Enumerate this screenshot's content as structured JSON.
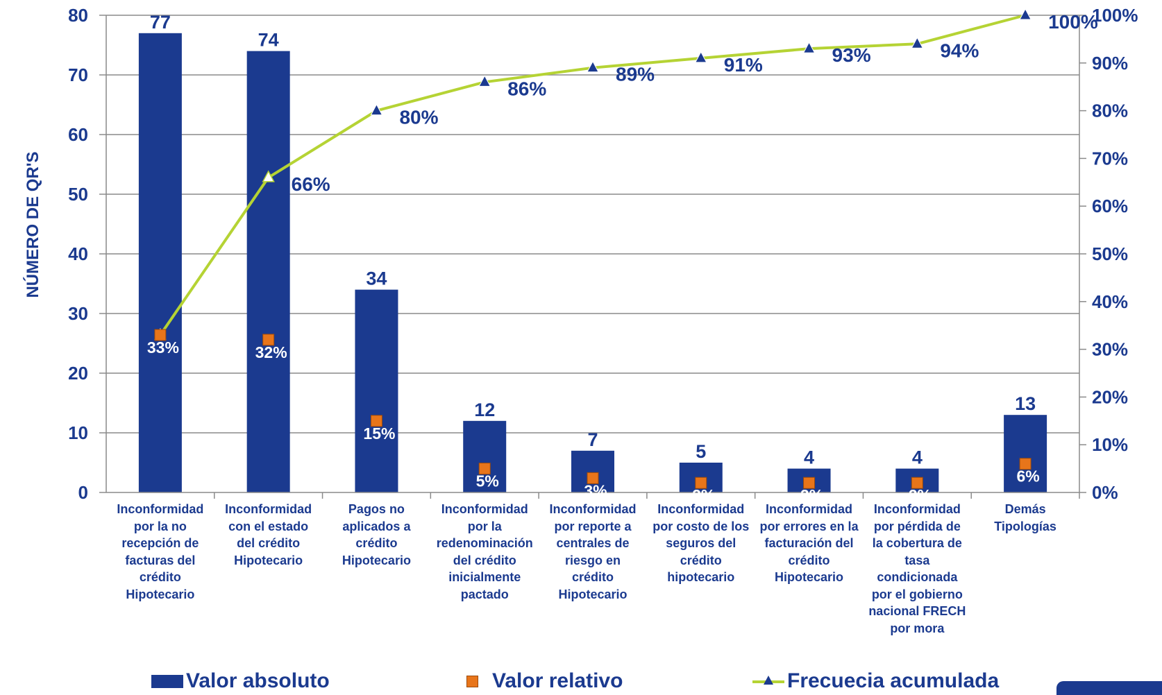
{
  "chart_data": {
    "type": "bar",
    "ylabel": "NÚMERO DE QR'S",
    "ylim": [
      0,
      80
    ],
    "y_ticks": [
      0,
      10,
      20,
      30,
      40,
      50,
      60,
      70,
      80
    ],
    "y2lim": [
      0,
      100
    ],
    "y2_ticks": [
      "0%",
      "10%",
      "20%",
      "30%",
      "40%",
      "50%",
      "60%",
      "70%",
      "80%",
      "90%",
      "100%"
    ],
    "grid": true,
    "legend_position": "bottom",
    "colors": {
      "bars": "#1b3a8f",
      "relative": "#e8751a",
      "cumulative_line": "#b5d334",
      "cumulative_marker": "#1b3a8f",
      "text": "#1b3a8f"
    },
    "categories": [
      "Inconformidad por la no recepción de facturas del crédito Hipotecario",
      "Inconformidad con el estado del crédito Hipotecario",
      "Pagos no aplicados a crédito Hipotecario",
      "Inconformidad por la redenominación del crédito inicialmente pactado",
      "Inconformidad por reporte a centrales de riesgo en crédito Hipotecario",
      "Inconformidad por costo de los seguros del crédito hipotecario",
      "Inconformidad por errores en la facturación del crédito Hipotecario",
      "Inconformidad por pérdida de la cobertura de tasa condicionada por el gobierno nacional FRECH por mora",
      "Demás Tipologías"
    ],
    "category_lines": [
      [
        "Inconformidad",
        "por la no",
        "recepción de",
        "facturas del",
        "crédito",
        "Hipotecario"
      ],
      [
        "Inconformidad",
        "con el estado",
        "del crédito",
        "Hipotecario"
      ],
      [
        "Pagos no",
        "aplicados a",
        "crédito",
        "Hipotecario"
      ],
      [
        "Inconformidad",
        "por la",
        "redenominación",
        "del crédito",
        "inicialmente",
        "pactado"
      ],
      [
        "Inconformidad",
        "por reporte a",
        "centrales de",
        "riesgo en",
        "crédito",
        "Hipotecario"
      ],
      [
        "Inconformidad",
        "por costo de los",
        "seguros del",
        "crédito",
        "hipotecario"
      ],
      [
        "Inconformidad",
        "por errores en la",
        "facturación del",
        "crédito",
        "Hipotecario"
      ],
      [
        "Inconformidad",
        "por pérdida de",
        "la cobertura de",
        "tasa",
        "condicionada",
        "por el gobierno",
        "nacional FRECH",
        "por mora"
      ],
      [
        "Demás",
        "Tipologías"
      ]
    ],
    "series": [
      {
        "name": "Valor absoluto",
        "type": "bar",
        "values": [
          77,
          74,
          34,
          12,
          7,
          5,
          4,
          4,
          13
        ],
        "labels": [
          "77",
          "74",
          "34",
          "12",
          "7",
          "5",
          "4",
          "4",
          "13"
        ]
      },
      {
        "name": "Valor relativo",
        "type": "marker",
        "values": [
          33,
          32,
          15,
          5,
          3,
          2,
          2,
          2,
          6
        ],
        "labels": [
          "33%",
          "32%",
          "15%",
          "5%",
          "3%",
          "2%",
          "2%",
          "2%",
          "6%"
        ]
      },
      {
        "name": "Frecuecia acumulada",
        "type": "line",
        "axis": "right",
        "values": [
          33,
          66,
          80,
          86,
          89,
          91,
          93,
          94,
          100
        ],
        "labels": [
          "",
          "66%",
          "80%",
          "86%",
          "89%",
          "91%",
          "93%",
          "94%",
          "100%"
        ]
      }
    ]
  },
  "legend": {
    "absolute": "Valor absoluto",
    "relative": "Valor relativo",
    "cumulative": "Frecuecia acumulada"
  }
}
